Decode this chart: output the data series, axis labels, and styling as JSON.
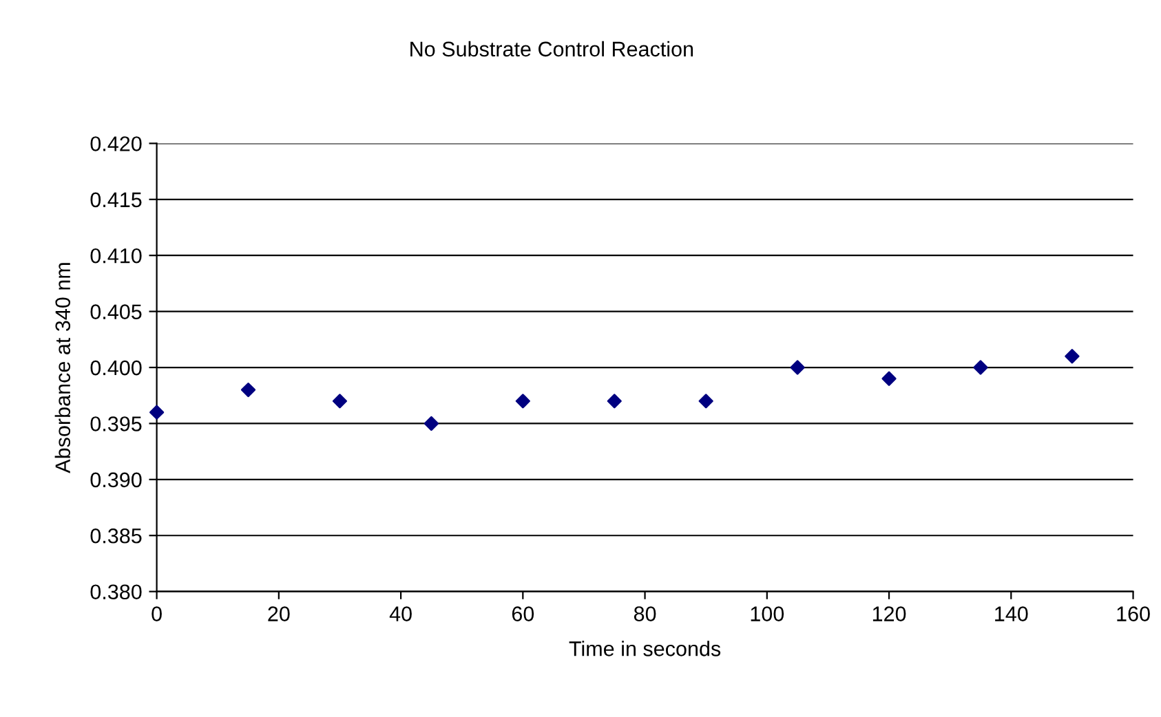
{
  "chart_data": {
    "type": "scatter",
    "title": "No Substrate Control Reaction",
    "xlabel": "Time in seconds",
    "ylabel": "Absorbance at 340 nm",
    "x": [
      0,
      15,
      30,
      45,
      60,
      75,
      90,
      105,
      120,
      135,
      150
    ],
    "series": [
      {
        "color": "#000080",
        "values": [
          0.396,
          0.398,
          0.397,
          0.395,
          0.397,
          0.397,
          0.397,
          0.4,
          0.399,
          0.4,
          0.401
        ]
      }
    ],
    "xlim": [
      0,
      160
    ],
    "xticks": [
      0,
      20,
      40,
      60,
      80,
      100,
      120,
      140,
      160
    ],
    "ylim": [
      0.38,
      0.42
    ],
    "yticks": [
      {
        "value": 0.38,
        "label": "0.380"
      },
      {
        "value": 0.385,
        "label": "0.385"
      },
      {
        "value": 0.39,
        "label": "0.390"
      },
      {
        "value": 0.395,
        "label": "0.395"
      },
      {
        "value": 0.4,
        "label": "0.400"
      },
      {
        "value": 0.405,
        "label": "0.405"
      },
      {
        "value": 0.41,
        "label": "0.410"
      },
      {
        "value": 0.415,
        "label": "0.415"
      },
      {
        "value": 0.42,
        "label": "0.420"
      }
    ],
    "grid": "y",
    "marker": "diamond",
    "legend": false
  }
}
